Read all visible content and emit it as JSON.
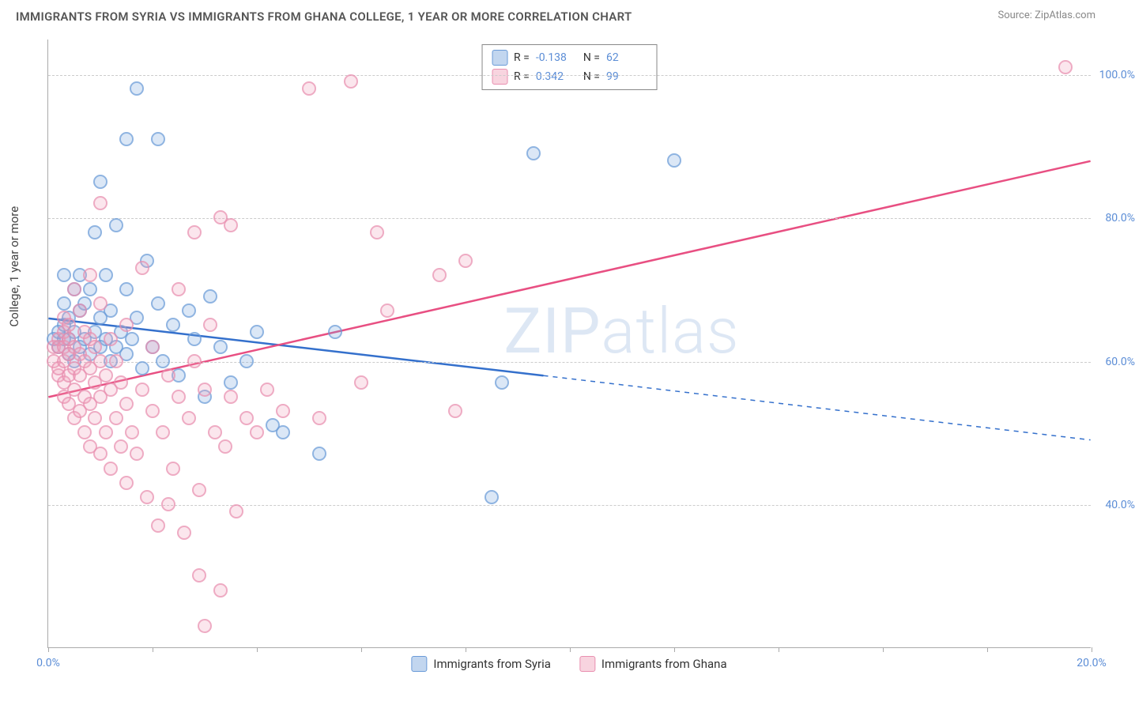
{
  "title": "IMMIGRANTS FROM SYRIA VS IMMIGRANTS FROM GHANA COLLEGE, 1 YEAR OR MORE CORRELATION CHART",
  "source": "Source: ZipAtlas.com",
  "watermark_a": "ZIP",
  "watermark_b": "atlas",
  "ylabel": "College, 1 year or more",
  "chart": {
    "type": "scatter",
    "xlim": [
      0,
      20
    ],
    "ylim": [
      20,
      105
    ],
    "xticks": [
      0,
      2,
      4,
      6,
      8,
      10,
      12,
      14,
      16,
      18,
      20
    ],
    "xtick_labels": {
      "0": "0.0%",
      "20": "20.0%"
    },
    "yticks": [
      40,
      60,
      80,
      100
    ],
    "ytick_labels": [
      "40.0%",
      "60.0%",
      "80.0%",
      "100.0%"
    ],
    "grid_color": "#cccccc",
    "background_color": "#ffffff",
    "series": [
      {
        "name": "Immigrants from Syria",
        "color_fill": "rgba(120,165,220,0.35)",
        "color_stroke": "#6a9bd8",
        "r_label": "R =",
        "r_value": "-0.138",
        "n_label": "N =",
        "n_value": "62",
        "trend": {
          "x1": 0,
          "y1": 66,
          "x2_solid": 9.5,
          "y2_solid": 58,
          "x2": 20,
          "y2": 49,
          "color": "#3470cc",
          "width": 2.5
        },
        "points": [
          [
            0.1,
            63
          ],
          [
            0.2,
            62
          ],
          [
            0.2,
            64
          ],
          [
            0.3,
            63
          ],
          [
            0.3,
            65
          ],
          [
            0.3,
            68
          ],
          [
            0.3,
            72
          ],
          [
            0.4,
            61
          ],
          [
            0.4,
            63
          ],
          [
            0.4,
            66
          ],
          [
            0.5,
            60
          ],
          [
            0.5,
            64
          ],
          [
            0.5,
            70
          ],
          [
            0.6,
            62
          ],
          [
            0.6,
            67
          ],
          [
            0.6,
            72
          ],
          [
            0.7,
            63
          ],
          [
            0.7,
            68
          ],
          [
            0.8,
            61
          ],
          [
            0.8,
            70
          ],
          [
            0.9,
            64
          ],
          [
            0.9,
            78
          ],
          [
            1.0,
            62
          ],
          [
            1.0,
            66
          ],
          [
            1.0,
            85
          ],
          [
            1.1,
            63
          ],
          [
            1.1,
            72
          ],
          [
            1.2,
            60
          ],
          [
            1.2,
            67
          ],
          [
            1.3,
            62
          ],
          [
            1.3,
            79
          ],
          [
            1.4,
            64
          ],
          [
            1.5,
            61
          ],
          [
            1.5,
            70
          ],
          [
            1.5,
            91
          ],
          [
            1.6,
            63
          ],
          [
            1.7,
            98
          ],
          [
            1.7,
            66
          ],
          [
            1.8,
            59
          ],
          [
            1.9,
            74
          ],
          [
            2.0,
            62
          ],
          [
            2.1,
            68
          ],
          [
            2.1,
            91
          ],
          [
            2.2,
            60
          ],
          [
            2.4,
            65
          ],
          [
            2.5,
            58
          ],
          [
            2.7,
            67
          ],
          [
            2.8,
            63
          ],
          [
            3.0,
            55
          ],
          [
            3.1,
            69
          ],
          [
            3.3,
            62
          ],
          [
            3.5,
            57
          ],
          [
            3.8,
            60
          ],
          [
            4.0,
            64
          ],
          [
            4.3,
            51
          ],
          [
            4.5,
            50
          ],
          [
            5.2,
            47
          ],
          [
            5.5,
            64
          ],
          [
            8.5,
            41
          ],
          [
            8.7,
            57
          ],
          [
            9.3,
            89
          ],
          [
            12.0,
            88
          ]
        ]
      },
      {
        "name": "Immigrants from Ghana",
        "color_fill": "rgba(240,160,185,0.35)",
        "color_stroke": "#e98fb0",
        "r_label": "R =",
        "r_value": "0.342",
        "n_label": "N =",
        "n_value": "99",
        "trend": {
          "x1": 0,
          "y1": 55,
          "x2_solid": 20,
          "y2_solid": 88,
          "x2": 20,
          "y2": 88,
          "color": "#e84f82",
          "width": 2.5
        },
        "points": [
          [
            0.1,
            60
          ],
          [
            0.1,
            62
          ],
          [
            0.2,
            58
          ],
          [
            0.2,
            59
          ],
          [
            0.2,
            62
          ],
          [
            0.2,
            63
          ],
          [
            0.3,
            55
          ],
          [
            0.3,
            57
          ],
          [
            0.3,
            60
          ],
          [
            0.3,
            62
          ],
          [
            0.3,
            64
          ],
          [
            0.3,
            66
          ],
          [
            0.4,
            54
          ],
          [
            0.4,
            58
          ],
          [
            0.4,
            61
          ],
          [
            0.4,
            63
          ],
          [
            0.4,
            65
          ],
          [
            0.5,
            52
          ],
          [
            0.5,
            56
          ],
          [
            0.5,
            59
          ],
          [
            0.5,
            62
          ],
          [
            0.5,
            70
          ],
          [
            0.6,
            53
          ],
          [
            0.6,
            58
          ],
          [
            0.6,
            61
          ],
          [
            0.6,
            67
          ],
          [
            0.7,
            50
          ],
          [
            0.7,
            55
          ],
          [
            0.7,
            60
          ],
          [
            0.7,
            64
          ],
          [
            0.8,
            48
          ],
          [
            0.8,
            54
          ],
          [
            0.8,
            59
          ],
          [
            0.8,
            63
          ],
          [
            0.8,
            72
          ],
          [
            0.9,
            52
          ],
          [
            0.9,
            57
          ],
          [
            0.9,
            62
          ],
          [
            1.0,
            47
          ],
          [
            1.0,
            55
          ],
          [
            1.0,
            60
          ],
          [
            1.0,
            68
          ],
          [
            1.0,
            82
          ],
          [
            1.1,
            50
          ],
          [
            1.1,
            58
          ],
          [
            1.2,
            45
          ],
          [
            1.2,
            56
          ],
          [
            1.2,
            63
          ],
          [
            1.3,
            52
          ],
          [
            1.3,
            60
          ],
          [
            1.4,
            48
          ],
          [
            1.4,
            57
          ],
          [
            1.5,
            43
          ],
          [
            1.5,
            54
          ],
          [
            1.5,
            65
          ],
          [
            1.6,
            50
          ],
          [
            1.7,
            47
          ],
          [
            1.8,
            56
          ],
          [
            1.8,
            73
          ],
          [
            1.9,
            41
          ],
          [
            2.0,
            53
          ],
          [
            2.0,
            62
          ],
          [
            2.1,
            37
          ],
          [
            2.2,
            50
          ],
          [
            2.3,
            58
          ],
          [
            2.4,
            45
          ],
          [
            2.5,
            55
          ],
          [
            2.5,
            70
          ],
          [
            2.6,
            36
          ],
          [
            2.7,
            52
          ],
          [
            2.8,
            60
          ],
          [
            2.8,
            78
          ],
          [
            2.9,
            42
          ],
          [
            2.9,
            30
          ],
          [
            3.0,
            56
          ],
          [
            3.0,
            23
          ],
          [
            3.2,
            50
          ],
          [
            3.3,
            28
          ],
          [
            3.3,
            80
          ],
          [
            3.4,
            48
          ],
          [
            3.5,
            55
          ],
          [
            3.5,
            79
          ],
          [
            3.6,
            39
          ],
          [
            3.8,
            52
          ],
          [
            4.0,
            50
          ],
          [
            4.2,
            56
          ],
          [
            4.5,
            53
          ],
          [
            5.0,
            98
          ],
          [
            5.2,
            52
          ],
          [
            5.8,
            99
          ],
          [
            6.0,
            57
          ],
          [
            6.3,
            78
          ],
          [
            6.5,
            67
          ],
          [
            7.5,
            72
          ],
          [
            7.8,
            53
          ],
          [
            8.0,
            74
          ],
          [
            19.5,
            101
          ],
          [
            3.1,
            65
          ],
          [
            2.3,
            40
          ]
        ]
      }
    ]
  }
}
